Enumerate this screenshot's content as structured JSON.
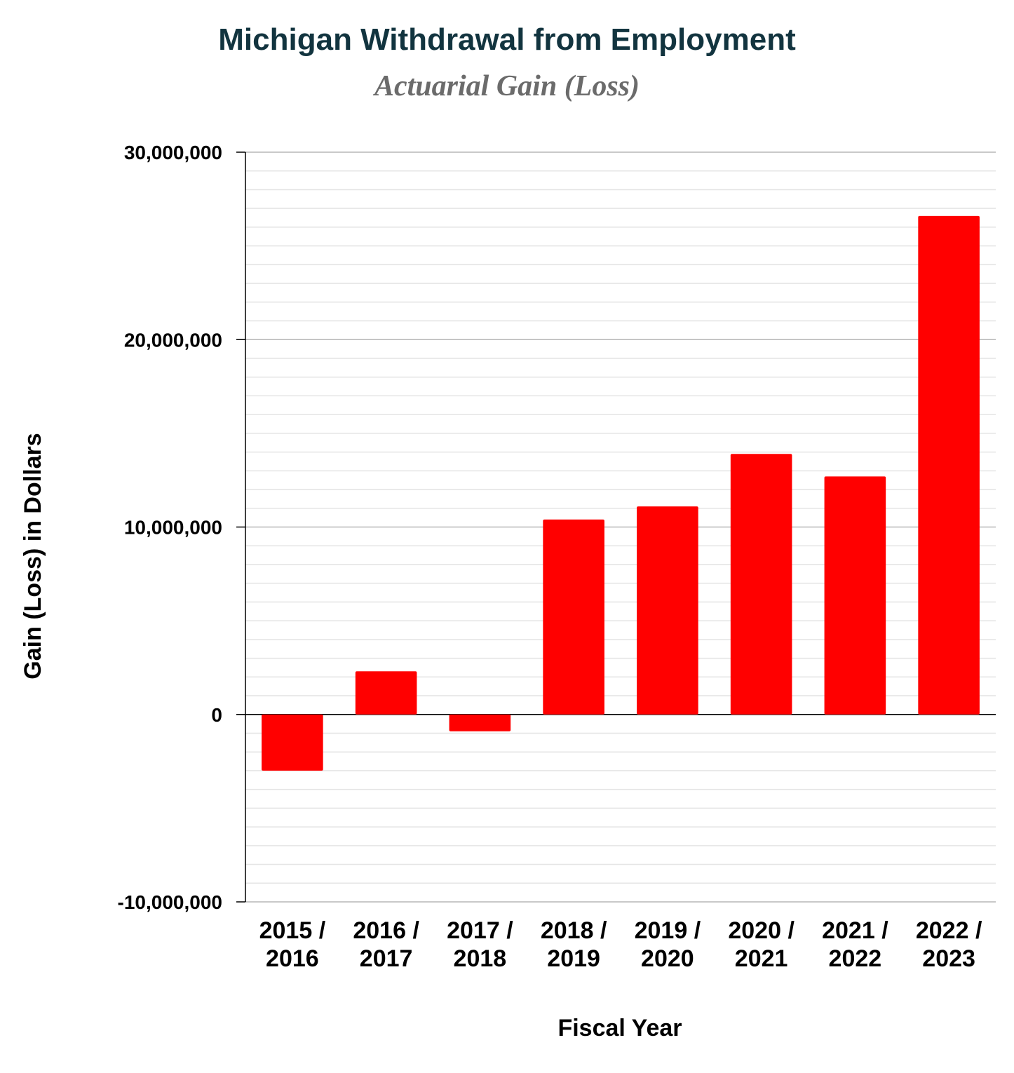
{
  "chart_data": {
    "type": "bar",
    "title": "Michigan Withdrawal from Employment",
    "subtitle": "Actuarial Gain (Loss)",
    "xlabel": "Fiscal Year",
    "ylabel": "Gain (Loss) in Dollars",
    "categories": [
      [
        "2015 /",
        "2016"
      ],
      [
        "2016 /",
        "2017"
      ],
      [
        "2017 /",
        "2018"
      ],
      [
        "2018 /",
        "2019"
      ],
      [
        "2019 /",
        "2020"
      ],
      [
        "2020 /",
        "2021"
      ],
      [
        "2021 /",
        "2022"
      ],
      [
        "2022 /",
        "2023"
      ]
    ],
    "values": [
      -3000000,
      2300000,
      -900000,
      10400000,
      11100000,
      13900000,
      12700000,
      26600000
    ],
    "ylim": [
      -10000000,
      30000000
    ],
    "major_ticks": [
      -10000000,
      0,
      10000000,
      20000000,
      30000000
    ],
    "y_tick_labels": [
      "-10,000,000",
      "0",
      "10,000,000",
      "20,000,000",
      "30,000,000"
    ],
    "minor_step": 1000000,
    "grid": true,
    "legend": "none",
    "colors": {
      "bar": "#ff0000",
      "title": "#12343f",
      "subtitle": "#6b6b6b",
      "major_grid": "#b7b7b7",
      "minor_grid": "#e4e4e4",
      "axis": "#000000"
    }
  }
}
